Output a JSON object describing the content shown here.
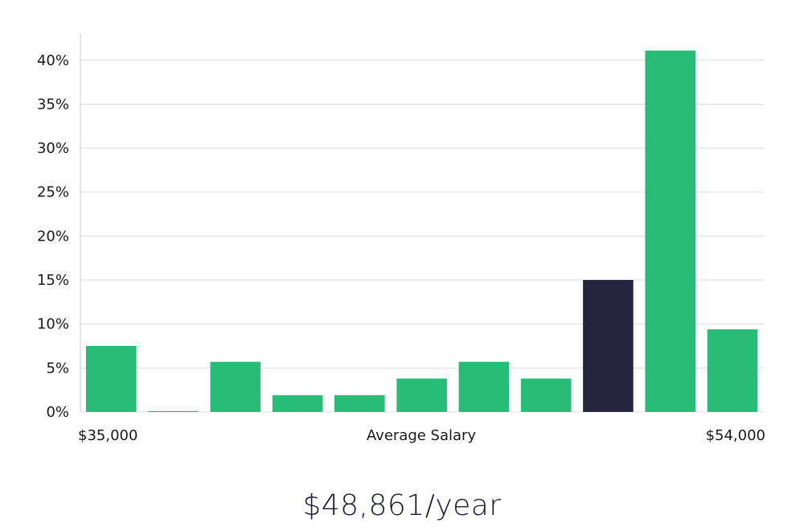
{
  "colors": {
    "bar": "#28bd76",
    "highlight": "#27243f",
    "grid": "#dddddd",
    "axis": "#cccccc",
    "text": "#1a1a1a"
  },
  "headline": "$48,861/year",
  "chart_data": {
    "type": "bar",
    "ylim": [
      0,
      0.43
    ],
    "y_ticks": [
      {
        "value": 0,
        "label": "0%"
      },
      {
        "value": 0.05,
        "label": "5%"
      },
      {
        "value": 0.1,
        "label": "10%"
      },
      {
        "value": 0.15,
        "label": "15%"
      },
      {
        "value": 0.2,
        "label": "20%"
      },
      {
        "value": 0.25,
        "label": "25%"
      },
      {
        "value": 0.3,
        "label": "30%"
      },
      {
        "value": 0.35,
        "label": "35%"
      },
      {
        "value": 0.4,
        "label": "40%"
      }
    ],
    "x_min_label": "$35,000",
    "x_max_label": "$54,000",
    "xlabel": "Average Salary",
    "values": [
      0.075,
      0.001,
      0.057,
      0.019,
      0.019,
      0.038,
      0.057,
      0.038,
      0.15,
      0.411,
      0.094
    ],
    "highlight_index": 8,
    "grid": true
  }
}
